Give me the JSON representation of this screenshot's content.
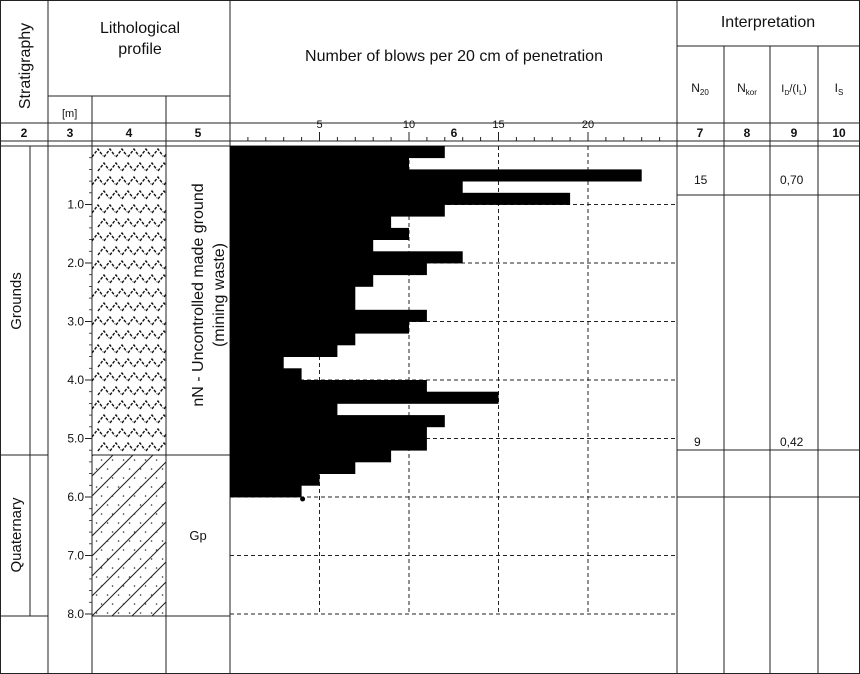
{
  "header": {
    "stratigraphy": "Stratigraphy",
    "lithological_profile": [
      "Lithological",
      "profile"
    ],
    "blows_title": "Number of blows per 20 cm of penetration",
    "interpretation": "Interpretation",
    "depth_unit": "[m]",
    "col_n20": {
      "main": "N",
      "sub": "20"
    },
    "col_nkor": {
      "main": "N",
      "sub": "kor"
    },
    "col_id": {
      "main": "I",
      "sub": "D",
      "rest": "/(I",
      "sub2": "L",
      "end": ")"
    },
    "col_is": {
      "main": "I",
      "sub": "S"
    }
  },
  "column_numbers": [
    "2",
    "3",
    "4",
    "5",
    "6",
    "7",
    "8",
    "9",
    "10"
  ],
  "stratigraphy": {
    "upper": "Grounds",
    "lower": "Quaternary"
  },
  "layers": [
    {
      "name": "nN - Uncontrolled made ground",
      "sub": "(mining waste)",
      "top_m": 0.0,
      "bottom_m": 5.4,
      "hatch": "made-ground"
    },
    {
      "name": "Gp",
      "top_m": 5.4,
      "bottom_m": 8.0,
      "hatch": "sandy-clay"
    }
  ],
  "depth_ticks": [
    "1.0",
    "2.0",
    "3.0",
    "4.0",
    "5.0",
    "6.0",
    "7.0",
    "8.0"
  ],
  "chart_data": {
    "type": "bar",
    "orientation": "horizontal-step",
    "title": "Number of blows per 20 cm of penetration",
    "x_ticks": [
      "5",
      "10",
      "15",
      "20"
    ],
    "xlim": [
      0,
      24
    ],
    "depth_step_m": 0.2,
    "depth_range_m": [
      0,
      6.0
    ],
    "blows": [
      12,
      10,
      23,
      13,
      19,
      12,
      9,
      10,
      8,
      13,
      11,
      8,
      7,
      7,
      11,
      10,
      7,
      6,
      3,
      4,
      11,
      15,
      6,
      12,
      11,
      11,
      9,
      7,
      5,
      4
    ]
  },
  "interpretation": [
    {
      "n20": "15",
      "nkor": "",
      "id": "0,70",
      "is": ""
    },
    {
      "n20": "9",
      "nkor": "",
      "id": "0,42",
      "is": ""
    }
  ]
}
